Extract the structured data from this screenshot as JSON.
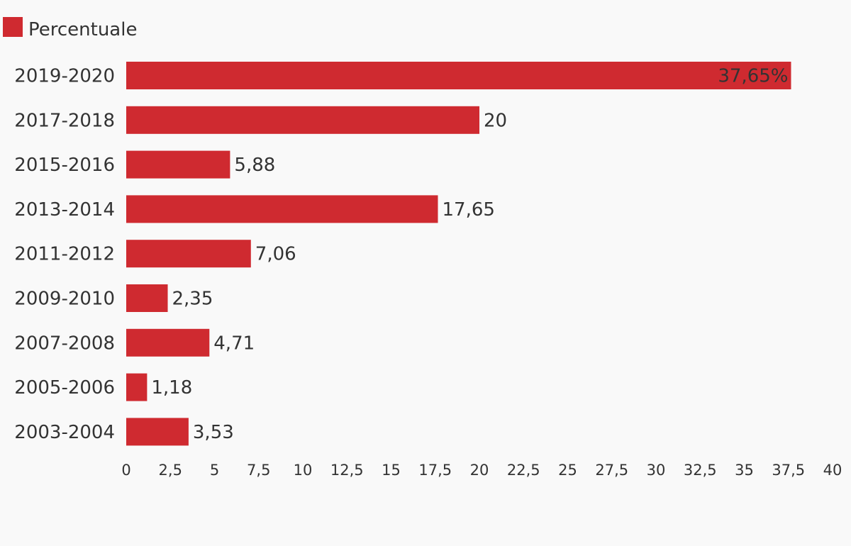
{
  "chart_data": {
    "type": "bar",
    "orientation": "horizontal",
    "legend": {
      "label": "Percentuale",
      "position": "top-left"
    },
    "categories": [
      "2019-2020",
      "2017-2018",
      "2015-2016",
      "2013-2014",
      "2011-2012",
      "2009-2010",
      "2007-2008",
      "2005-2006",
      "2003-2004"
    ],
    "series": [
      {
        "name": "Percentuale",
        "values": [
          37.65,
          20,
          5.88,
          17.65,
          7.06,
          2.35,
          4.71,
          1.18,
          3.53
        ],
        "labels": [
          "37,65%",
          "20",
          "5,88",
          "17,65",
          "7,06",
          "2,35",
          "4,71",
          "1,18",
          "3,53"
        ],
        "color": "#cf2a30"
      }
    ],
    "xlim": [
      0,
      40
    ],
    "xticks": [
      0,
      2.5,
      5,
      7.5,
      10,
      12.5,
      15,
      17.5,
      20,
      22.5,
      25,
      27.5,
      30,
      32.5,
      35,
      37.5,
      40
    ],
    "xtick_labels": [
      "0",
      "2,5",
      "5",
      "7,5",
      "10",
      "12,5",
      "15",
      "17,5",
      "20",
      "22,5",
      "25",
      "27,5",
      "30",
      "32,5",
      "35",
      "37,5",
      "40"
    ],
    "grid": false
  }
}
